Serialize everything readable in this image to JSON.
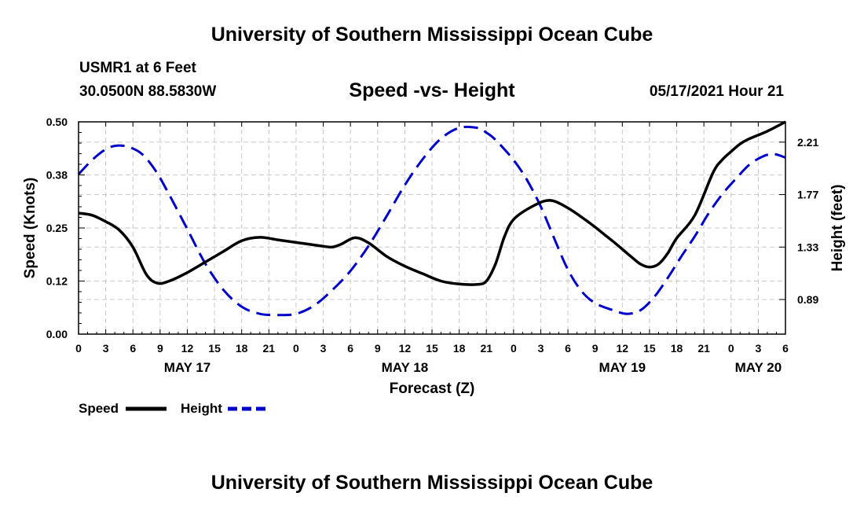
{
  "header": {
    "title": "University of Southern Mississippi Ocean Cube",
    "station": "USMR1 at 6 Feet",
    "coordinates": "30.0500N  88.5830W",
    "subtitle": "Speed -vs- Height",
    "datetime": "05/17/2021 Hour 21"
  },
  "footer": {
    "title": "University of Southern Mississippi Ocean Cube"
  },
  "chart_data": {
    "type": "line",
    "title": "Speed -vs- Height",
    "xlabel": "Forecast (Z)",
    "ylabel_left": "Speed (Knots)",
    "ylabel_right": "Height (feet)",
    "x_unit": "hours since May 17 00Z",
    "xlim": [
      0,
      78
    ],
    "ylim_left": [
      0,
      0.5
    ],
    "ylim_right": [
      0.6,
      2.38
    ],
    "grid": true,
    "x_ticks": [
      0,
      3,
      6,
      9,
      12,
      15,
      18,
      21,
      24,
      27,
      30,
      33,
      36,
      39,
      42,
      45,
      48,
      51,
      54,
      57,
      60,
      63,
      66,
      69,
      72,
      75,
      78
    ],
    "x_tick_labels": [
      "0",
      "3",
      "6",
      "9",
      "12",
      "15",
      "18",
      "21",
      "0",
      "3",
      "6",
      "9",
      "12",
      "15",
      "18",
      "21",
      "0",
      "3",
      "6",
      "9",
      "12",
      "15",
      "18",
      "21",
      "0",
      "3",
      "6"
    ],
    "date_labels": [
      {
        "x": 12,
        "label": "MAY 17"
      },
      {
        "x": 36,
        "label": "MAY 18"
      },
      {
        "x": 60,
        "label": "MAY 19"
      },
      {
        "x": 75,
        "label": "MAY 20"
      }
    ],
    "left_ticks": [
      {
        "value": 0.0,
        "label": "0.00"
      },
      {
        "value": 0.125,
        "label": "0.12"
      },
      {
        "value": 0.25,
        "label": "0.25"
      },
      {
        "value": 0.375,
        "label": "0.38"
      },
      {
        "value": 0.5,
        "label": "0.50"
      }
    ],
    "right_ticks": [
      {
        "value": 0.89,
        "label": "0.89"
      },
      {
        "value": 1.33,
        "label": "1.33"
      },
      {
        "value": 1.77,
        "label": "1.77"
      },
      {
        "value": 2.21,
        "label": "2.21"
      }
    ],
    "legend": [
      {
        "name": "Speed",
        "color": "#000000",
        "dash": "solid"
      },
      {
        "name": "Height",
        "color": "#0000cc",
        "dash": "dashed"
      }
    ],
    "series": [
      {
        "name": "Speed",
        "axis": "left",
        "color": "#000000",
        "x": [
          0,
          1.5,
          3,
          4.5,
          6,
          7.5,
          8.7,
          10,
          12,
          14,
          16,
          18,
          20,
          22,
          24,
          26,
          27,
          28,
          29,
          30.5,
          32,
          34,
          36,
          38,
          40,
          42,
          44,
          45,
          46,
          47,
          48,
          50,
          52,
          54,
          56,
          57,
          58,
          59,
          60,
          61,
          62,
          63,
          64,
          65,
          66,
          68,
          70,
          71,
          72,
          73,
          74,
          76,
          78
        ],
        "y": [
          0.285,
          0.28,
          0.265,
          0.245,
          0.205,
          0.14,
          0.12,
          0.125,
          0.145,
          0.17,
          0.195,
          0.22,
          0.228,
          0.222,
          0.216,
          0.21,
          0.207,
          0.205,
          0.212,
          0.227,
          0.215,
          0.183,
          0.16,
          0.142,
          0.125,
          0.118,
          0.117,
          0.125,
          0.165,
          0.23,
          0.27,
          0.3,
          0.315,
          0.297,
          0.268,
          0.252,
          0.235,
          0.218,
          0.2,
          0.182,
          0.165,
          0.158,
          0.165,
          0.19,
          0.226,
          0.28,
          0.38,
          0.41,
          0.43,
          0.448,
          0.46,
          0.478,
          0.5
        ]
      },
      {
        "name": "Height",
        "axis": "right",
        "color": "#0000cc",
        "x": [
          0,
          1.5,
          3,
          4.2,
          5.5,
          7,
          8.5,
          10,
          12,
          14,
          16,
          18,
          20,
          22,
          24,
          26,
          28,
          30,
          32,
          34,
          36,
          38,
          40,
          42,
          44,
          45,
          46,
          48,
          49.5,
          51,
          52.5,
          54,
          55.5,
          57,
          59,
          60.5,
          62,
          63.5,
          65,
          66.5,
          68,
          69.5,
          71,
          72.5,
          74,
          75.5,
          76.7,
          78
        ],
        "y": [
          1.94,
          2.06,
          2.15,
          2.18,
          2.17,
          2.11,
          1.97,
          1.77,
          1.48,
          1.19,
          0.97,
          0.83,
          0.77,
          0.76,
          0.77,
          0.84,
          0.97,
          1.13,
          1.34,
          1.59,
          1.85,
          2.07,
          2.24,
          2.33,
          2.33,
          2.29,
          2.23,
          2.06,
          1.89,
          1.67,
          1.4,
          1.14,
          0.96,
          0.86,
          0.8,
          0.77,
          0.8,
          0.91,
          1.07,
          1.25,
          1.42,
          1.61,
          1.77,
          1.9,
          2.02,
          2.09,
          2.11,
          2.08
        ]
      }
    ]
  }
}
